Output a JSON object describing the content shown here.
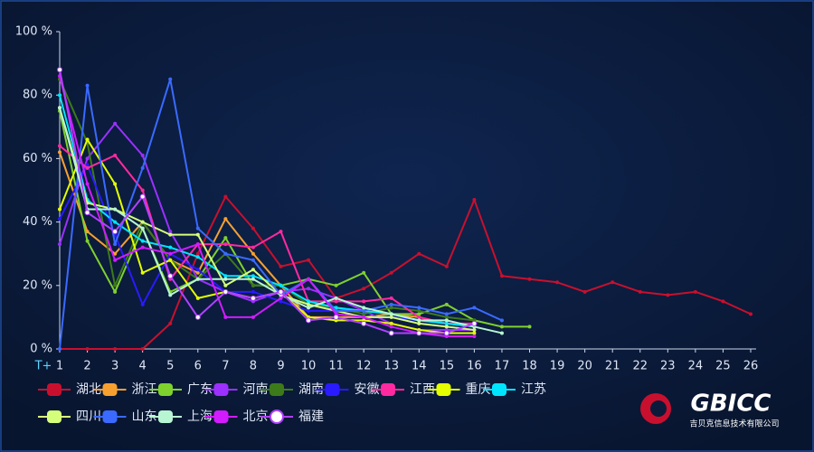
{
  "chart_data": {
    "type": "line",
    "x_label": "T+",
    "categories": [
      "1",
      "2",
      "3",
      "4",
      "5",
      "6",
      "7",
      "8",
      "9",
      "10",
      "11",
      "12",
      "13",
      "14",
      "15",
      "16",
      "17",
      "18",
      "19",
      "20",
      "21",
      "22",
      "23",
      "24",
      "25",
      "26"
    ],
    "ylim": [
      0,
      100
    ],
    "yticks": [
      {
        "value": 0,
        "label": "0 %"
      },
      {
        "value": 20,
        "label": "20 %"
      },
      {
        "value": 40,
        "label": "40 %"
      },
      {
        "value": 60,
        "label": "60 %"
      },
      {
        "value": 80,
        "label": "80 %"
      },
      {
        "value": 100,
        "label": "100 %"
      }
    ],
    "grid": false,
    "legend": "bottom",
    "series": [
      {
        "name": "湖北",
        "color": "#c8102e",
        "values": [
          0,
          0,
          0,
          0,
          8,
          30,
          48,
          38,
          26,
          28,
          16,
          19,
          24,
          30,
          26,
          47,
          23,
          22,
          21,
          18,
          21,
          18,
          17,
          18,
          15,
          11
        ]
      },
      {
        "name": "浙江",
        "color": "#f7a030",
        "values": [
          62,
          37,
          30,
          40,
          28,
          24,
          41,
          30,
          20,
          10,
          10,
          10,
          11,
          10,
          8,
          7,
          null,
          null,
          null,
          null,
          null,
          null,
          null,
          null,
          null,
          null
        ]
      },
      {
        "name": "广东",
        "color": "#7fd12e",
        "values": [
          75,
          34,
          18,
          38,
          18,
          22,
          35,
          20,
          20,
          22,
          20,
          24,
          11,
          11,
          14,
          9,
          7,
          7,
          null,
          null,
          null,
          null,
          null,
          null,
          null,
          null
        ]
      },
      {
        "name": "河南",
        "color": "#9b30ff",
        "values": [
          33,
          60,
          71,
          61,
          37,
          22,
          18,
          15,
          18,
          19,
          16,
          12,
          8,
          6,
          6,
          6,
          null,
          null,
          null,
          null,
          null,
          null,
          null,
          null,
          null,
          null
        ]
      },
      {
        "name": "湖南",
        "color": "#3d7a1a",
        "values": [
          85,
          65,
          20,
          40,
          28,
          22,
          30,
          20,
          20,
          14,
          13,
          11,
          13,
          12,
          10,
          9,
          null,
          null,
          null,
          null,
          null,
          null,
          null,
          null,
          null,
          null
        ]
      },
      {
        "name": "安徽",
        "color": "#2a1aff",
        "values": [
          41,
          58,
          36,
          14,
          30,
          25,
          18,
          18,
          15,
          12,
          12,
          10,
          10,
          9,
          8,
          7,
          null,
          null,
          null,
          null,
          null,
          null,
          null,
          null,
          null,
          null
        ]
      },
      {
        "name": "江西",
        "color": "#ff2aa0",
        "values": [
          64,
          57,
          61,
          50,
          22,
          33,
          33,
          32,
          37,
          15,
          15,
          15,
          16,
          10,
          8,
          8,
          null,
          null,
          null,
          null,
          null,
          null,
          null,
          null,
          null,
          null
        ]
      },
      {
        "name": "重庆",
        "color": "#e5ff00",
        "values": [
          44,
          66,
          52,
          24,
          28,
          16,
          18,
          16,
          18,
          10,
          9,
          9,
          8,
          6,
          5,
          5,
          null,
          null,
          null,
          null,
          null,
          null,
          null,
          null,
          null,
          null
        ]
      },
      {
        "name": "江苏",
        "color": "#00e5ff",
        "values": [
          80,
          47,
          40,
          34,
          32,
          29,
          23,
          23,
          20,
          15,
          13,
          12,
          11,
          9,
          8,
          7,
          null,
          null,
          null,
          null,
          null,
          null,
          null,
          null,
          null,
          null
        ]
      },
      {
        "name": "四川",
        "color": "#d5ff7a",
        "values": [
          76,
          46,
          44,
          40,
          36,
          36,
          20,
          25,
          17,
          14,
          12,
          10,
          10,
          8,
          7,
          6,
          null,
          null,
          null,
          null,
          null,
          null,
          null,
          null,
          null,
          null
        ]
      },
      {
        "name": "山东",
        "color": "#3a6aff",
        "values": [
          0,
          83,
          33,
          57,
          85,
          38,
          30,
          28,
          17,
          22,
          12,
          12,
          14,
          13,
          11,
          13,
          9,
          null,
          null,
          null,
          null,
          null,
          null,
          null,
          null,
          null
        ]
      },
      {
        "name": "上海",
        "color": "#b8f5d2",
        "values": [
          76,
          44,
          44,
          38,
          17,
          22,
          22,
          22,
          17,
          13,
          16,
          13,
          11,
          9,
          9,
          7,
          5,
          null,
          null,
          null,
          null,
          null,
          null,
          null,
          null,
          null
        ]
      },
      {
        "name": "北京",
        "color": "#d21bff",
        "values": [
          86,
          52,
          28,
          32,
          30,
          33,
          10,
          10,
          16,
          22,
          11,
          10,
          7,
          5,
          4,
          4,
          null,
          null,
          null,
          null,
          null,
          null,
          null,
          null,
          null,
          null
        ]
      },
      {
        "name": "福建",
        "color": "#ffffff",
        "stroke": "#b040ff",
        "values": [
          88,
          43,
          37,
          48,
          23,
          10,
          18,
          16,
          18,
          9,
          10,
          8,
          5,
          5,
          5,
          8,
          null,
          null,
          null,
          null,
          null,
          null,
          null,
          null,
          null,
          null
        ]
      }
    ]
  },
  "logo": {
    "name": "GBICC",
    "subtitle": "吉贝克信息技术有限公司"
  }
}
